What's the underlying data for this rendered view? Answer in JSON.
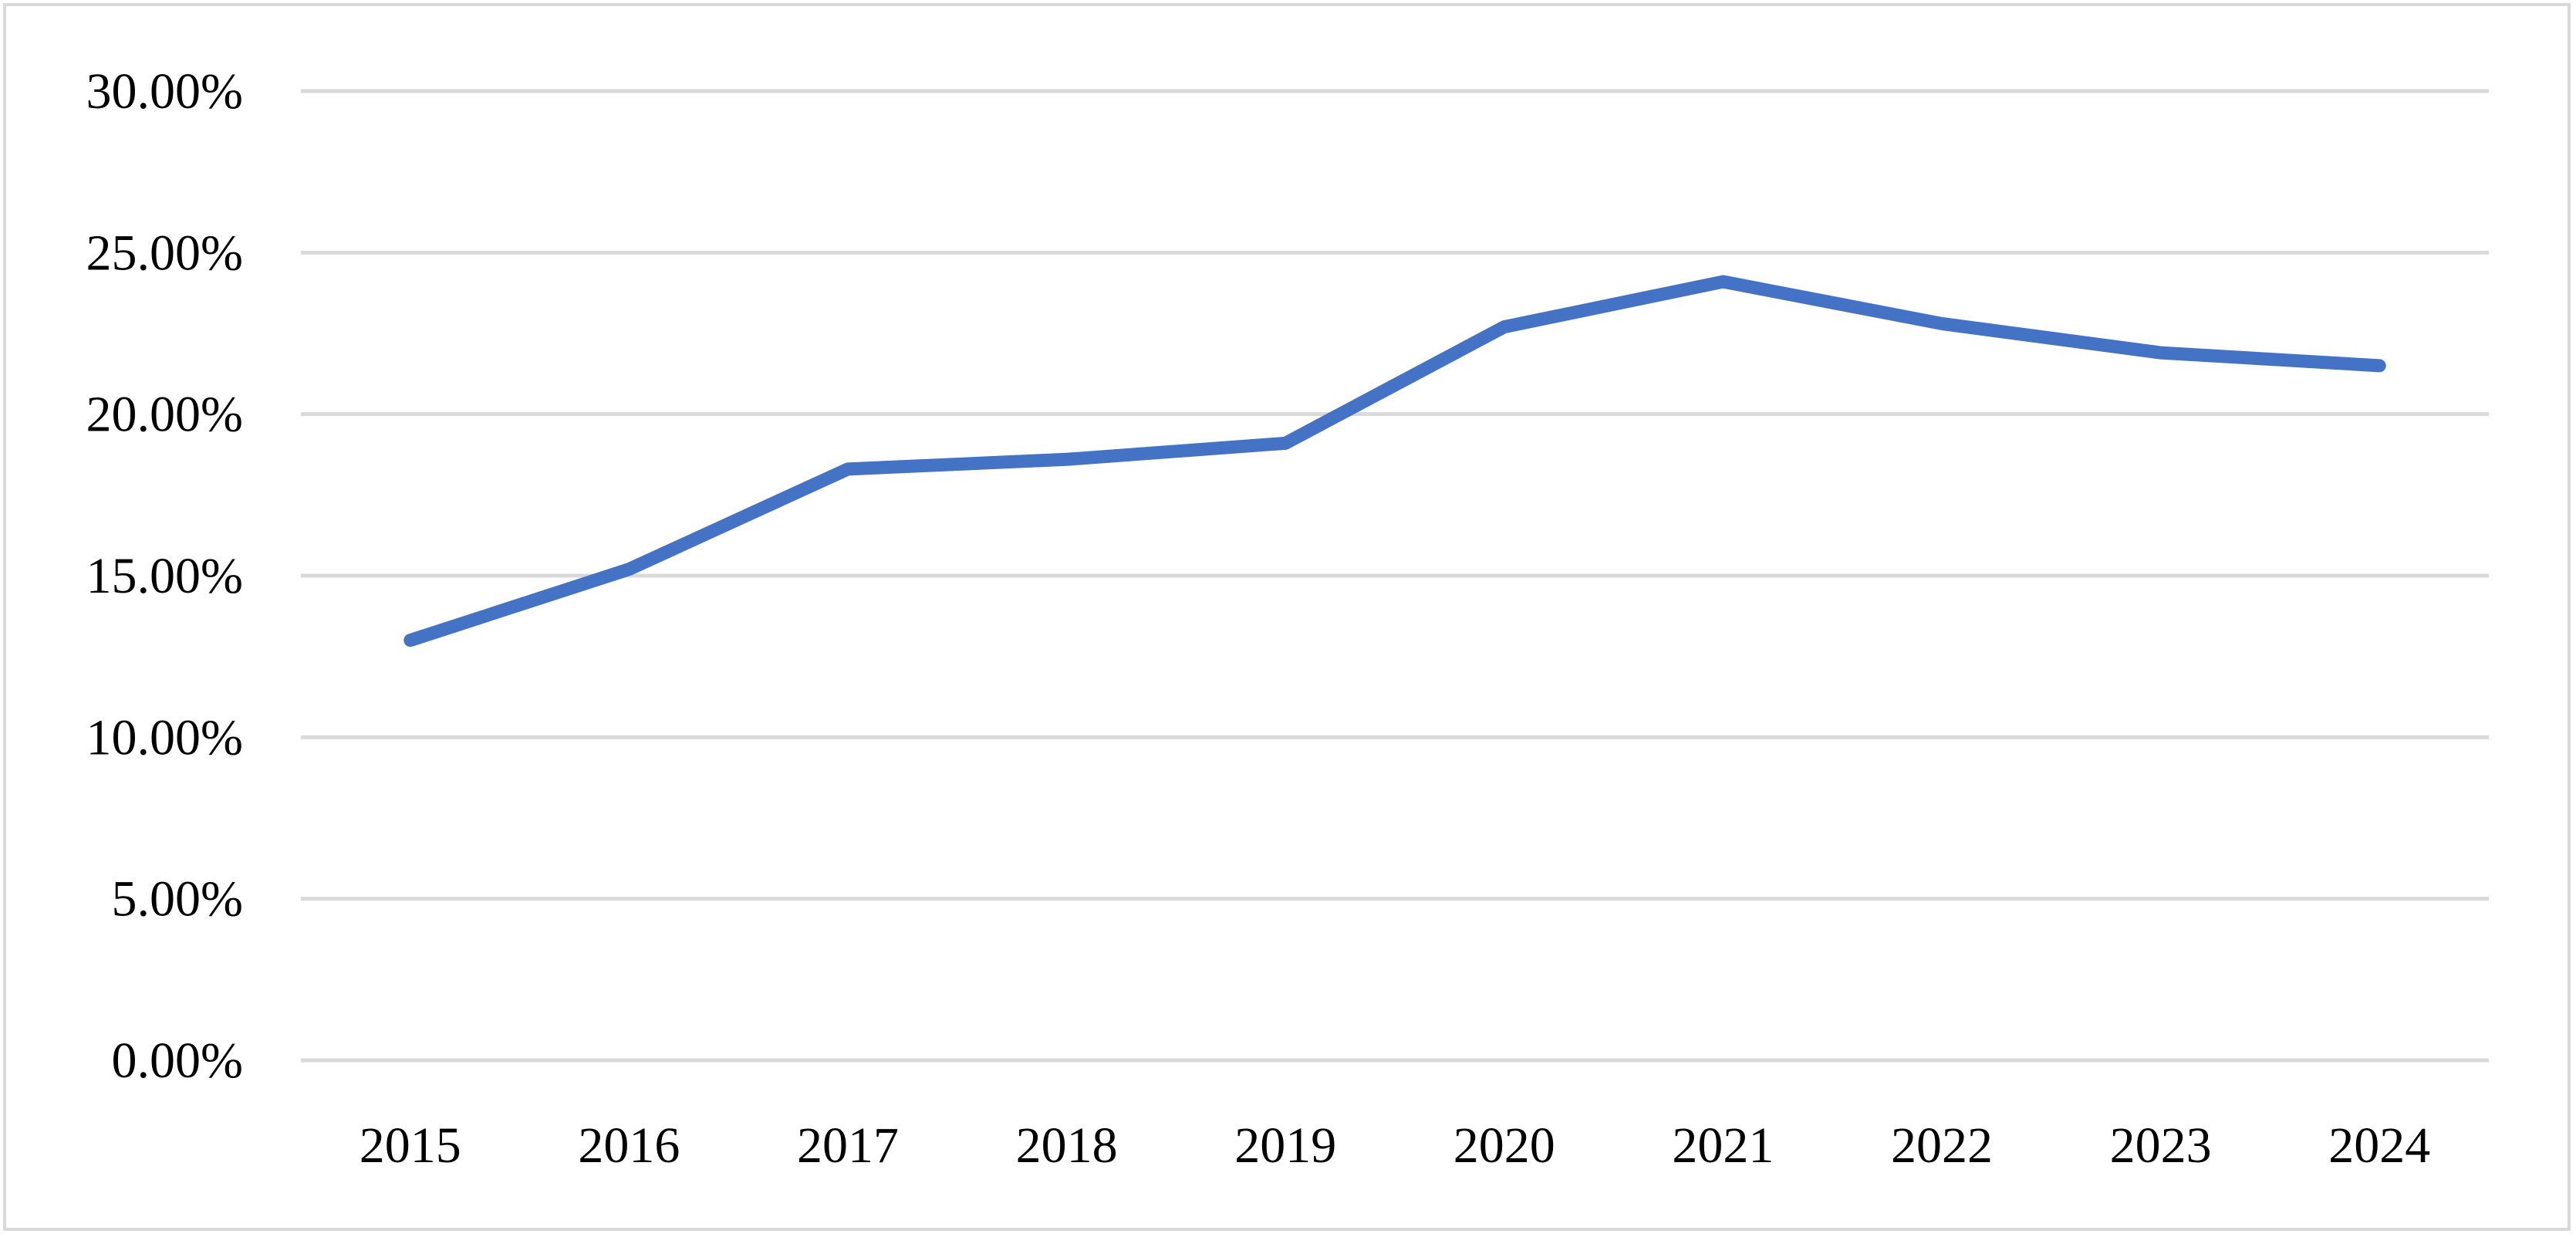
{
  "chart_data": {
    "type": "line",
    "title": "",
    "xlabel": "",
    "ylabel": "",
    "categories": [
      "2015",
      "2016",
      "2017",
      "2018",
      "2019",
      "2020",
      "2021",
      "2022",
      "2023",
      "2024"
    ],
    "series": [
      {
        "values": [
          13.0,
          15.2,
          18.3,
          18.6,
          19.1,
          22.7,
          24.1,
          22.8,
          21.9,
          21.5
        ],
        "color": "#4472c4"
      }
    ],
    "ylim": [
      0,
      30
    ],
    "y_ticks": [
      0,
      5,
      10,
      15,
      20,
      25,
      30
    ],
    "y_tick_labels": [
      "0.00%",
      "5.00%",
      "10.00%",
      "15.00%",
      "20.00%",
      "25.00%",
      "30.00%"
    ],
    "grid": "horizontal",
    "gridline_color": "#d9d9d9",
    "legend": "none"
  }
}
